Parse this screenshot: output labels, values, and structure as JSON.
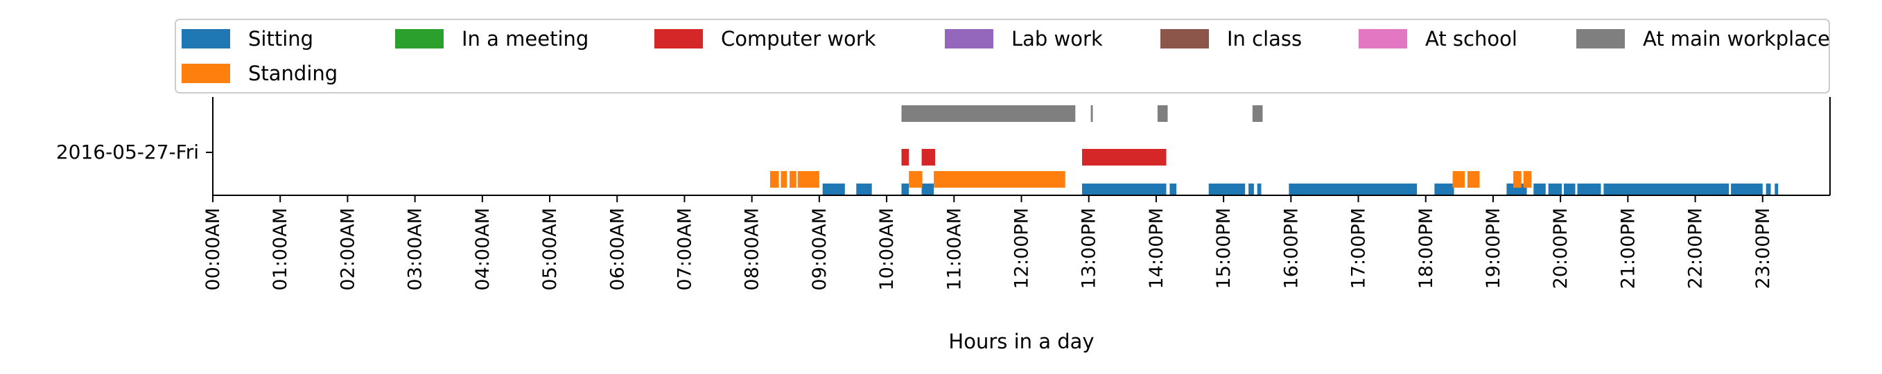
{
  "chart_data": {
    "type": "timeline",
    "row_labels": [
      "2016-05-27-Fri"
    ],
    "xlabel": "Hours in a day",
    "x_ticks": [
      "00:00AM",
      "01:00AM",
      "02:00AM",
      "03:00AM",
      "04:00AM",
      "05:00AM",
      "06:00AM",
      "07:00AM",
      "08:00AM",
      "09:00AM",
      "10:00AM",
      "11:00AM",
      "12:00PM",
      "13:00PM",
      "14:00PM",
      "15:00PM",
      "16:00PM",
      "17:00PM",
      "18:00PM",
      "19:00PM",
      "20:00PM",
      "21:00PM",
      "22:00PM",
      "23:00PM"
    ],
    "xlim": [
      0,
      24
    ],
    "legend_position": "top",
    "legend": [
      {
        "name": "Sitting",
        "color": "#1f77b4"
      },
      {
        "name": "In a meeting",
        "color": "#2ca02c"
      },
      {
        "name": "Computer work",
        "color": "#d62728"
      },
      {
        "name": "Lab work",
        "color": "#9467bd"
      },
      {
        "name": "In class",
        "color": "#8c564b"
      },
      {
        "name": "At school",
        "color": "#e377c2"
      },
      {
        "name": "At main workplace",
        "color": "#7f7f7f"
      },
      {
        "name": "Standing",
        "color": "#ff7f0e"
      }
    ],
    "series": [
      {
        "name": "Sitting",
        "color": "#1f77b4",
        "intervals": [
          [
            9.05,
            9.38
          ],
          [
            9.55,
            9.78
          ],
          [
            10.22,
            10.33
          ],
          [
            10.52,
            10.7
          ],
          [
            12.9,
            14.15
          ],
          [
            14.2,
            14.3
          ],
          [
            14.78,
            15.32
          ],
          [
            15.37,
            15.45
          ],
          [
            15.5,
            15.56
          ],
          [
            15.97,
            17.87
          ],
          [
            18.13,
            18.42
          ],
          [
            19.2,
            19.5
          ],
          [
            19.6,
            19.78
          ],
          [
            19.82,
            20.02
          ],
          [
            20.05,
            20.22
          ],
          [
            20.25,
            20.6
          ],
          [
            20.64,
            22.5
          ],
          [
            22.53,
            23.0
          ],
          [
            23.05,
            23.12
          ],
          [
            23.18,
            23.23
          ]
        ]
      },
      {
        "name": "Standing",
        "color": "#ff7f0e",
        "intervals": [
          [
            8.27,
            8.4
          ],
          [
            8.43,
            8.52
          ],
          [
            8.56,
            8.66
          ],
          [
            8.68,
            9.0
          ],
          [
            10.33,
            10.53
          ],
          [
            10.7,
            12.65
          ],
          [
            18.4,
            18.58
          ],
          [
            18.62,
            18.8
          ],
          [
            19.3,
            19.42
          ],
          [
            19.45,
            19.57
          ]
        ]
      },
      {
        "name": "Computer work",
        "color": "#d62728",
        "intervals": [
          [
            10.22,
            10.33
          ],
          [
            10.52,
            10.72
          ],
          [
            12.9,
            14.15
          ]
        ]
      },
      {
        "name": "At main workplace",
        "color": "#7f7f7f",
        "intervals": [
          [
            10.22,
            12.8
          ],
          [
            13.03,
            13.06
          ],
          [
            14.02,
            14.17
          ],
          [
            15.43,
            15.58
          ]
        ]
      }
    ]
  }
}
